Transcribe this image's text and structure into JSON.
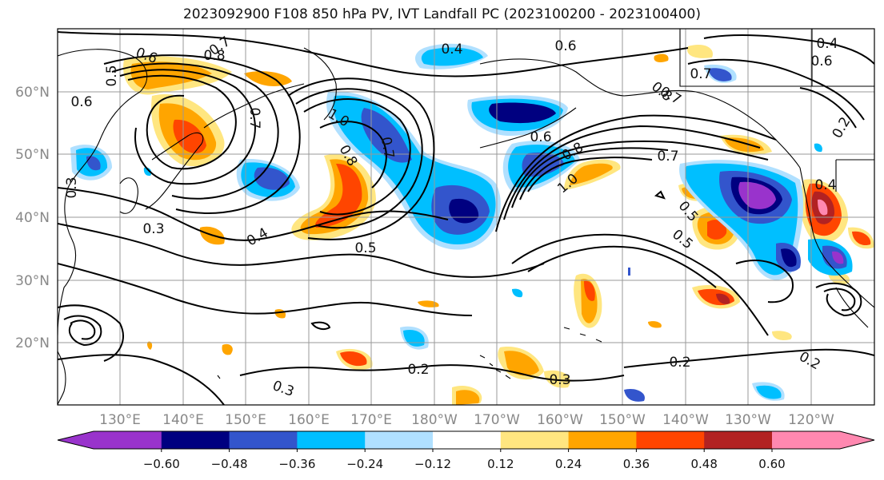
{
  "title": "2023092900 F108 850 hPa PV, IVT Landfall PC (2023100200 - 2023100400)",
  "latitude_labels": [
    "60°N",
    "50°N",
    "40°N",
    "30°N",
    "20°N"
  ],
  "longitude_labels": [
    "130°E",
    "140°E",
    "150°E",
    "160°E",
    "170°E",
    "180°W",
    "170°W",
    "160°W",
    "150°W",
    "140°W",
    "130°W",
    "120°W"
  ],
  "contour_labels": [
    "0.6",
    "0.7",
    "0.8",
    "0.5",
    "0.6",
    "0.7",
    "1.0",
    "0.8",
    "0.7",
    "0.4",
    "0.3",
    "0.4",
    "0.5",
    "0.6",
    "0.7",
    "1.0",
    "0.8",
    "0.7",
    "0.5",
    "0.5",
    "0.4",
    "0.3",
    "0.6",
    "0.8",
    "0.7",
    "0.4",
    "0.6",
    "0.2",
    "0.2",
    "0.3",
    "0.2",
    "0.2",
    "0.3"
  ],
  "colorbar": {
    "tick_labels": [
      "−0.60",
      "−0.48",
      "−0.36",
      "−0.24",
      "−0.12",
      "0.12",
      "0.24",
      "0.36",
      "0.48",
      "0.60"
    ],
    "colors": [
      "#9933cc",
      "#000080",
      "#3355cc",
      "#00bfff",
      "#b0e0ff",
      "#ffffff",
      "#ffe680",
      "#ffa500",
      "#ff4500",
      "#b22222",
      "#ff88b0"
    ]
  },
  "colors": {
    "land_outline": "#000000",
    "grid": "#999999",
    "contour": "#000000"
  }
}
